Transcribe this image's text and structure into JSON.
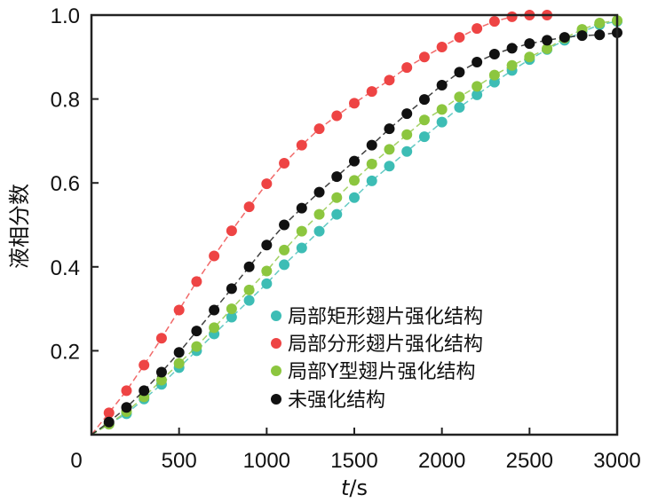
{
  "chart_data": {
    "type": "line",
    "xlabel_italic": "t",
    "xlabel_unit": "/s",
    "ylabel": "液相分数",
    "xlim": [
      0,
      3000
    ],
    "ylim": [
      0,
      1.0
    ],
    "xticks": [
      0,
      500,
      1000,
      1500,
      2000,
      2500,
      3000
    ],
    "xtick_labels": [
      "0",
      "500",
      "1000",
      "1500",
      "2000",
      "2500",
      "3000"
    ],
    "yticks": [
      0.2,
      0.4,
      0.6,
      0.8,
      1.0
    ],
    "ytick_labels": [
      "0.2",
      "0.4",
      "0.6",
      "0.8",
      "1.0"
    ],
    "grid": false,
    "legend_position": "center-right",
    "series": [
      {
        "name": "局部矩形翅片强化结构",
        "color": "#3dbdb5",
        "x": [
          100,
          200,
          300,
          400,
          500,
          600,
          700,
          800,
          900,
          1000,
          1100,
          1200,
          1300,
          1400,
          1500,
          1600,
          1700,
          1800,
          1900,
          2000,
          2100,
          2200,
          2300,
          2400,
          2500,
          2600,
          2700,
          2800,
          2900,
          3000
        ],
        "y": [
          0.025,
          0.05,
          0.085,
          0.12,
          0.16,
          0.2,
          0.24,
          0.28,
          0.32,
          0.36,
          0.405,
          0.445,
          0.485,
          0.525,
          0.565,
          0.605,
          0.64,
          0.675,
          0.71,
          0.745,
          0.78,
          0.81,
          0.84,
          0.868,
          0.894,
          0.918,
          0.94,
          0.96,
          0.977,
          0.985
        ]
      },
      {
        "name": "局部分形翅片强化结构",
        "color": "#ee4444",
        "x": [
          100,
          200,
          300,
          400,
          500,
          600,
          700,
          800,
          900,
          1000,
          1100,
          1200,
          1300,
          1400,
          1500,
          1600,
          1700,
          1800,
          1900,
          2000,
          2100,
          2200,
          2300,
          2400,
          2500,
          2600
        ],
        "y": [
          0.052,
          0.105,
          0.166,
          0.23,
          0.297,
          0.365,
          0.426,
          0.486,
          0.543,
          0.598,
          0.647,
          0.69,
          0.729,
          0.76,
          0.79,
          0.818,
          0.845,
          0.875,
          0.9,
          0.924,
          0.947,
          0.968,
          0.985,
          0.996,
          1.0,
          1.0
        ]
      },
      {
        "name": "局部Y型翅片强化结构",
        "color": "#8cc63f",
        "x": [
          100,
          200,
          300,
          400,
          500,
          600,
          700,
          800,
          900,
          1000,
          1100,
          1200,
          1300,
          1400,
          1500,
          1600,
          1700,
          1800,
          1900,
          2000,
          2100,
          2200,
          2300,
          2400,
          2500,
          2600,
          2700,
          2800,
          2900,
          3000
        ],
        "y": [
          0.025,
          0.055,
          0.09,
          0.13,
          0.17,
          0.21,
          0.255,
          0.3,
          0.345,
          0.39,
          0.44,
          0.485,
          0.525,
          0.565,
          0.606,
          0.645,
          0.68,
          0.715,
          0.75,
          0.775,
          0.805,
          0.83,
          0.857,
          0.88,
          0.9,
          0.92,
          0.945,
          0.966,
          0.981,
          0.987
        ]
      },
      {
        "name": "未强化结构",
        "color": "#111111",
        "x": [
          100,
          200,
          300,
          400,
          500,
          600,
          700,
          800,
          900,
          1000,
          1100,
          1200,
          1300,
          1400,
          1500,
          1600,
          1700,
          1800,
          1900,
          2000,
          2100,
          2200,
          2300,
          2400,
          2500,
          2600,
          2700,
          2800,
          2900,
          3000
        ],
        "y": [
          0.03,
          0.065,
          0.105,
          0.149,
          0.196,
          0.247,
          0.297,
          0.348,
          0.4,
          0.452,
          0.5,
          0.54,
          0.578,
          0.615,
          0.652,
          0.69,
          0.729,
          0.765,
          0.799,
          0.833,
          0.864,
          0.888,
          0.907,
          0.921,
          0.932,
          0.94,
          0.947,
          0.951,
          0.953,
          0.958
        ]
      }
    ]
  }
}
